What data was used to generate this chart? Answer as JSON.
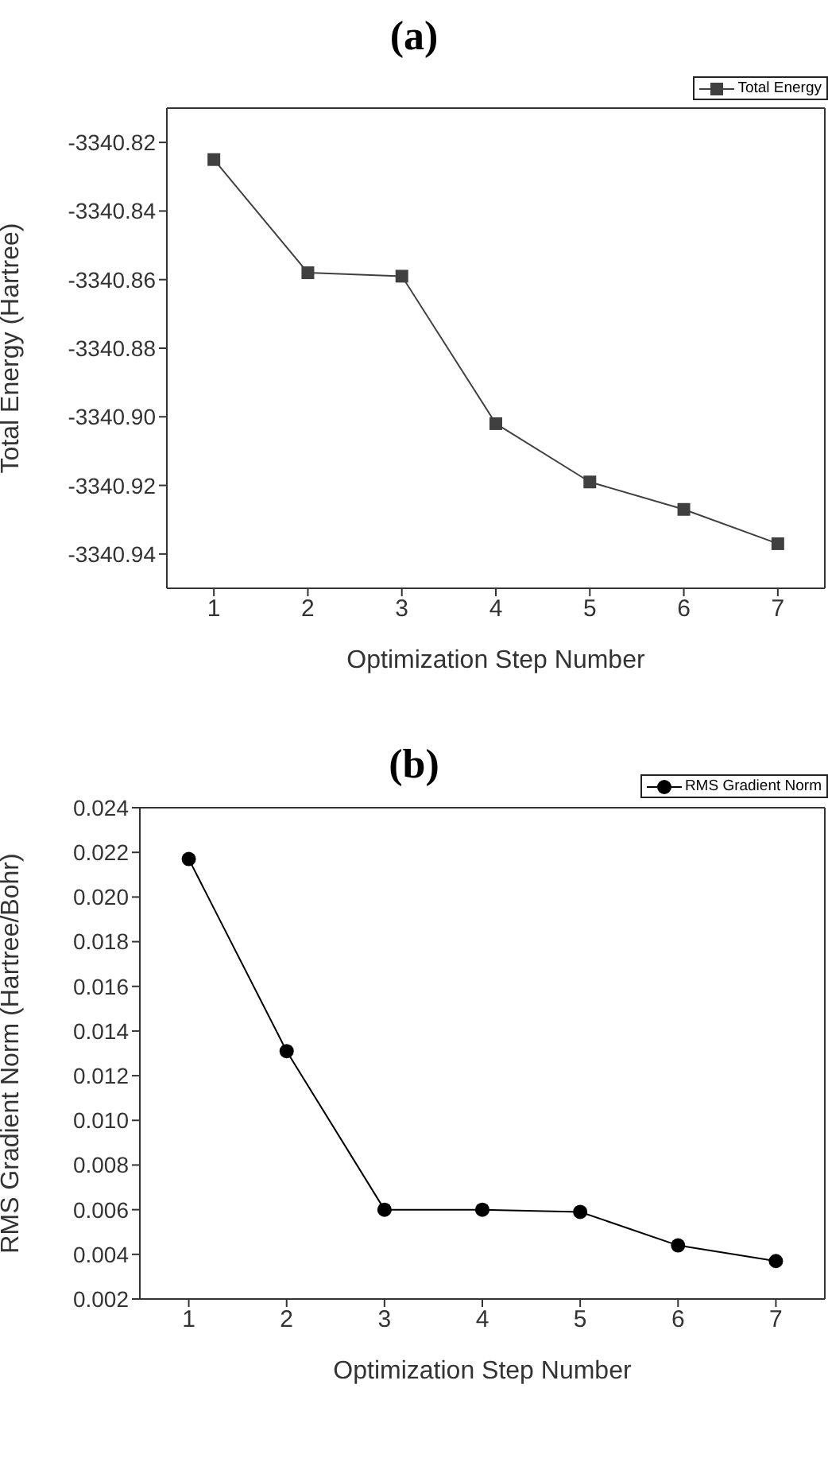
{
  "chart_data": [
    {
      "type": "line",
      "title": "(a)",
      "xlabel": "Optimization Step Number",
      "ylabel": "Total Energy (Hartree)",
      "x": [
        1,
        2,
        3,
        4,
        5,
        6,
        7
      ],
      "series": [
        {
          "name": "Total Energy",
          "color": "#404040",
          "values": [
            -3340.825,
            -3340.858,
            -3340.859,
            -3340.902,
            -3340.919,
            -3340.927,
            -3340.937
          ]
        }
      ],
      "xlim": [
        0.5,
        7.5
      ],
      "xticks": [
        1,
        2,
        3,
        4,
        5,
        6,
        7
      ],
      "ylim": [
        -3340.95,
        -3340.81
      ],
      "yticks": [
        -3340.82,
        -3340.84,
        -3340.86,
        -3340.88,
        {
          "value": -3340.9,
          "label": "-3340.90"
        },
        -3340.92,
        -3340.94
      ],
      "marker": "square",
      "legend": "top right",
      "grid": false
    },
    {
      "type": "line",
      "title": "(b)",
      "xlabel": "Optimization Step Number",
      "ylabel": "RMS Gradient Norm (Hartree/Bohr)",
      "x": [
        1,
        2,
        3,
        4,
        5,
        6,
        7
      ],
      "series": [
        {
          "name": "RMS Gradient Norm",
          "color": "#000000",
          "values": [
            0.0217,
            0.0131,
            0.006,
            0.006,
            0.0059,
            0.0044,
            0.0037
          ]
        }
      ],
      "xlim": [
        0.5,
        7.5
      ],
      "xticks": [
        1,
        2,
        3,
        4,
        5,
        6,
        7
      ],
      "ylim": [
        0.002,
        0.024
      ],
      "yticks": [
        0.002,
        0.004,
        0.006,
        0.008,
        {
          "value": 0.01,
          "label": "0.010"
        },
        0.012,
        0.014,
        0.016,
        0.018,
        {
          "value": 0.02,
          "label": "0.020"
        },
        0.022,
        0.024
      ],
      "marker": "circle",
      "legend": "top right",
      "grid": false
    }
  ]
}
